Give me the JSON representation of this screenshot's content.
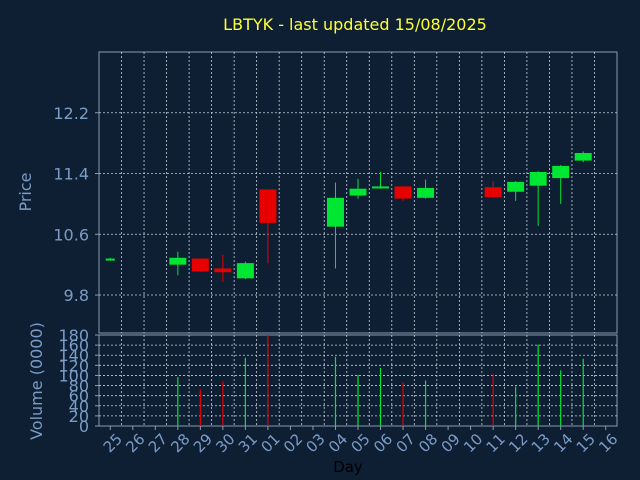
{
  "chart_data": [
    {
      "type": "candlestick",
      "title": "LBTYK - last updated 15/08/2025",
      "ylabel": "Price",
      "xlabel": "",
      "ylim": [
        9.3,
        13.0
      ],
      "yticks": [
        "9.8",
        "10.6",
        "11.4",
        "12.2"
      ],
      "grid": true,
      "categories": [
        "25",
        "26",
        "27",
        "28",
        "29",
        "30",
        "31",
        "01",
        "02",
        "03",
        "04",
        "05",
        "06",
        "07",
        "08",
        "09",
        "10",
        "11",
        "12",
        "13",
        "14",
        "15",
        "16"
      ],
      "candles": [
        {
          "x": "25",
          "open": 10.28,
          "high": 10.29,
          "low": 10.27,
          "close": 10.28
        },
        {
          "x": "28",
          "open": 10.2,
          "high": 10.37,
          "low": 10.06,
          "close": 10.29
        },
        {
          "x": "29",
          "open": 10.28,
          "high": 10.28,
          "low": 10.1,
          "close": 10.11
        },
        {
          "x": "30",
          "open": 10.15,
          "high": 10.33,
          "low": 9.97,
          "close": 10.1
        },
        {
          "x": "31",
          "open": 10.02,
          "high": 10.24,
          "low": 10.01,
          "close": 10.22
        },
        {
          "x": "01",
          "open": 11.19,
          "high": 11.19,
          "low": 10.22,
          "close": 10.75
        },
        {
          "x": "04",
          "open": 10.7,
          "high": 11.28,
          "low": 10.15,
          "close": 11.08
        },
        {
          "x": "05",
          "open": 11.11,
          "high": 11.33,
          "low": 11.07,
          "close": 11.2
        },
        {
          "x": "06",
          "open": 11.21,
          "high": 11.42,
          "low": 11.2,
          "close": 11.23
        },
        {
          "x": "07",
          "open": 11.23,
          "high": 11.23,
          "low": 11.04,
          "close": 11.07
        },
        {
          "x": "08",
          "open": 11.08,
          "high": 11.32,
          "low": 11.07,
          "close": 11.21
        },
        {
          "x": "11",
          "open": 11.22,
          "high": 11.3,
          "low": 11.08,
          "close": 11.09
        },
        {
          "x": "12",
          "open": 11.16,
          "high": 11.3,
          "low": 11.04,
          "close": 11.29
        },
        {
          "x": "13",
          "open": 11.24,
          "high": 11.43,
          "low": 10.71,
          "close": 11.42
        },
        {
          "x": "14",
          "open": 11.34,
          "high": 11.51,
          "low": 11.0,
          "close": 11.5
        },
        {
          "x": "15",
          "open": 11.57,
          "high": 11.69,
          "low": 11.55,
          "close": 11.67
        }
      ],
      "up_color": "#00e632",
      "down_color": "#e60000"
    },
    {
      "type": "bar",
      "ylabel": "Volume (0000)",
      "xlabel": "Day",
      "ylim": [
        0,
        180
      ],
      "yticks": [
        "0",
        "20",
        "40",
        "60",
        "80",
        "100",
        "120",
        "140",
        "160",
        "180"
      ],
      "categories": [
        "25",
        "26",
        "27",
        "28",
        "29",
        "30",
        "31",
        "01",
        "02",
        "03",
        "04",
        "05",
        "06",
        "07",
        "08",
        "09",
        "10",
        "11",
        "12",
        "13",
        "14",
        "15",
        "16"
      ],
      "bars": [
        {
          "x": "28",
          "value": 97,
          "direction": "up"
        },
        {
          "x": "29",
          "value": 72,
          "direction": "down"
        },
        {
          "x": "30",
          "value": 88,
          "direction": "down"
        },
        {
          "x": "31",
          "value": 135,
          "direction": "up"
        },
        {
          "x": "01",
          "value": 180,
          "direction": "down"
        },
        {
          "x": "04",
          "value": 137,
          "direction": "up"
        },
        {
          "x": "05",
          "value": 101,
          "direction": "up"
        },
        {
          "x": "06",
          "value": 115,
          "direction": "up"
        },
        {
          "x": "07",
          "value": 86,
          "direction": "down"
        },
        {
          "x": "08",
          "value": 90,
          "direction": "up"
        },
        {
          "x": "11",
          "value": 103,
          "direction": "down"
        },
        {
          "x": "12",
          "value": 78,
          "direction": "up"
        },
        {
          "x": "13",
          "value": 161,
          "direction": "up"
        },
        {
          "x": "14",
          "value": 110,
          "direction": "up"
        },
        {
          "x": "15",
          "value": 133,
          "direction": "up"
        }
      ],
      "up_color": "#00e632",
      "down_color": "#e60000"
    }
  ],
  "colors": {
    "background": "#0f1f33",
    "title": "#ffff33",
    "axis_text": "#7a9cc6",
    "frame": "#8a9bb0",
    "grid": "#c8d0da"
  }
}
